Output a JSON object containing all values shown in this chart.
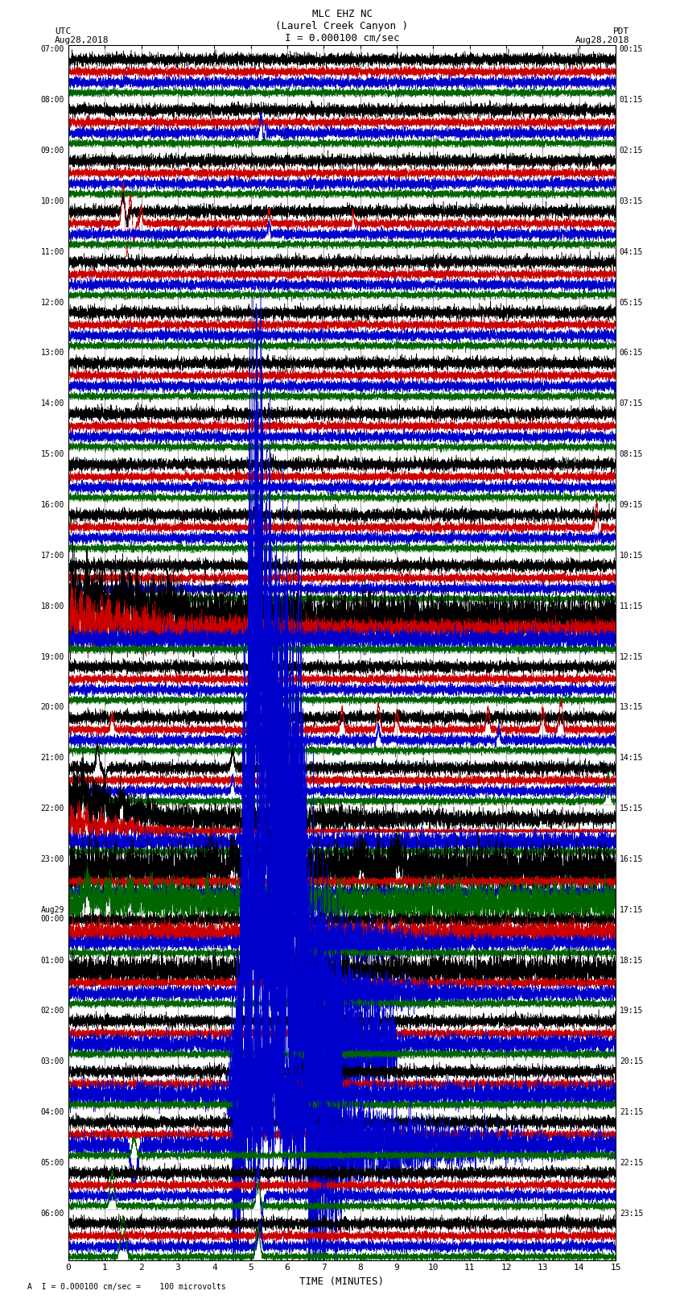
{
  "title_line1": "MLC EHZ NC",
  "title_line2": "(Laurel Creek Canyon )",
  "title_line3": "I = 0.000100 cm/sec",
  "left_header1": "UTC",
  "left_header2": "Aug28,2018",
  "right_header1": "PDT",
  "right_header2": "Aug28,2018",
  "xlabel": "TIME (MINUTES)",
  "footer": "A  I = 0.000100 cm/sec =    100 microvolts",
  "left_times": [
    "07:00",
    "08:00",
    "09:00",
    "10:00",
    "11:00",
    "12:00",
    "13:00",
    "14:00",
    "15:00",
    "16:00",
    "17:00",
    "18:00",
    "19:00",
    "20:00",
    "21:00",
    "22:00",
    "23:00",
    "Aug29\n00:00",
    "01:00",
    "02:00",
    "03:00",
    "04:00",
    "05:00",
    "06:00"
  ],
  "right_times": [
    "00:15",
    "01:15",
    "02:15",
    "03:15",
    "04:15",
    "05:15",
    "06:15",
    "07:15",
    "08:15",
    "09:15",
    "10:15",
    "11:15",
    "12:15",
    "13:15",
    "14:15",
    "15:15",
    "16:15",
    "17:15",
    "18:15",
    "19:15",
    "20:15",
    "21:15",
    "22:15",
    "23:15"
  ],
  "n_rows": 24,
  "x_min": 0,
  "x_max": 15,
  "x_ticks": [
    0,
    1,
    2,
    3,
    4,
    5,
    6,
    7,
    8,
    9,
    10,
    11,
    12,
    13,
    14,
    15
  ],
  "background_color": "#ffffff",
  "grid_color": "#888888",
  "trace_colors": [
    "black",
    "#cc0000",
    "#0000cc",
    "#006600"
  ],
  "figsize": [
    8.5,
    16.13
  ],
  "dpi": 100
}
